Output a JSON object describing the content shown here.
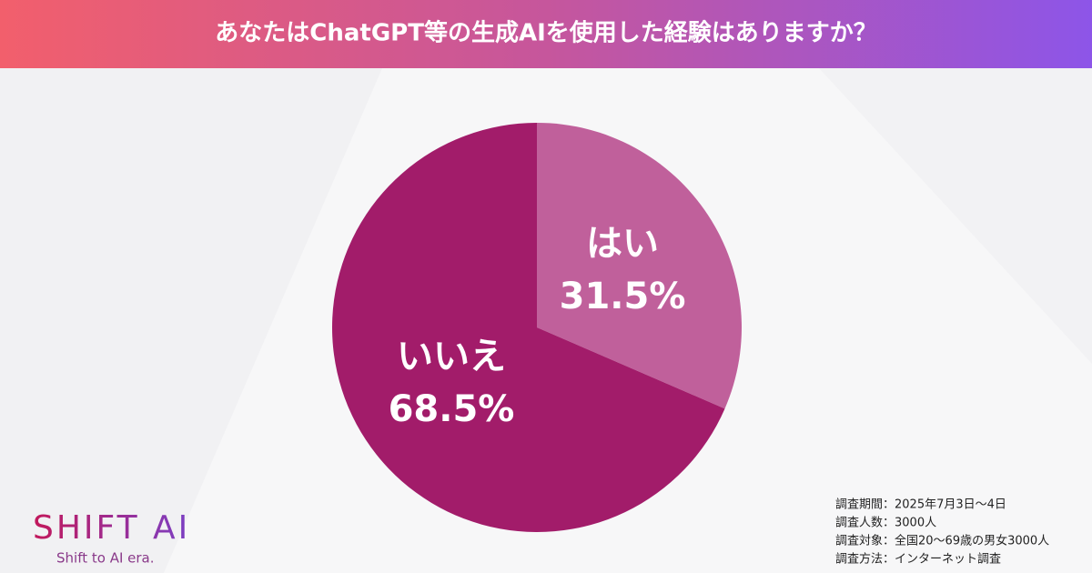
{
  "chart_data": {
    "type": "pie",
    "title": "あなたはChatGPT等の生成AIを使用した経験はありますか？",
    "categories": [
      "はい",
      "いいえ"
    ],
    "values": [
      31.5,
      68.5
    ],
    "value_labels": [
      "31.5%",
      "68.5%"
    ],
    "colors": [
      "#c0609b",
      "#a21c6a"
    ]
  },
  "logo": {
    "name": "SHIFT AI",
    "tagline": "Shift to AI era."
  },
  "notes": [
    "調査期間：2025年7月3日〜4日",
    "調査人数：3000人",
    "調査対象：全国20〜69歳の男女3000人",
    "調査方法：インターネット調査"
  ]
}
